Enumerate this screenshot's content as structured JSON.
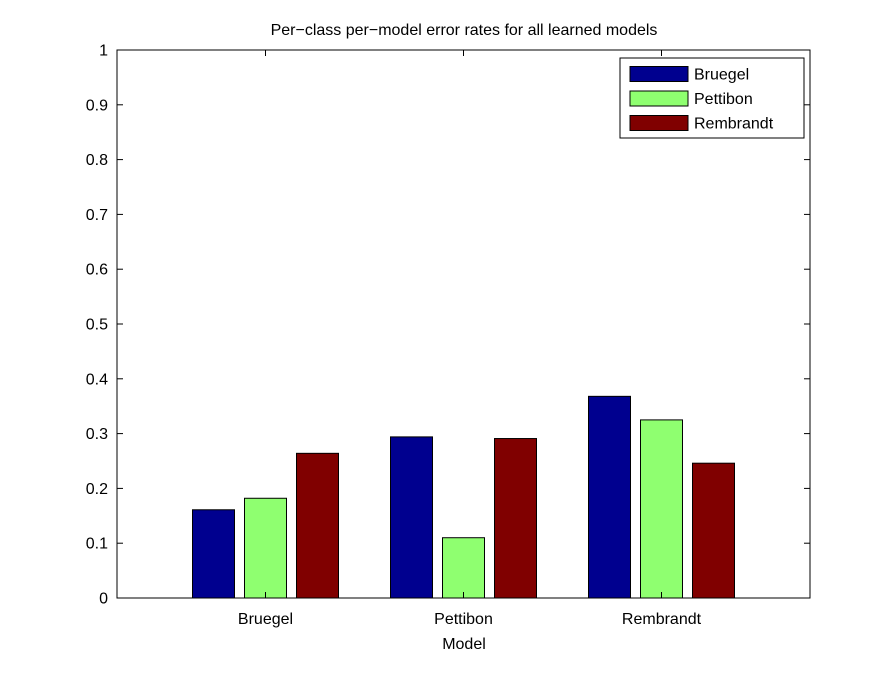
{
  "chart_data": {
    "type": "bar",
    "title": "Per−class per−model error rates for all learned models",
    "xlabel": "Model",
    "ylabel": "",
    "categories": [
      "Bruegel",
      "Pettibon",
      "Rembrandt"
    ],
    "series": [
      {
        "name": "Bruegel",
        "color": "#00008f",
        "values": [
          0.161,
          0.294,
          0.368
        ]
      },
      {
        "name": "Pettibon",
        "color": "#8fff70",
        "values": [
          0.182,
          0.11,
          0.325
        ]
      },
      {
        "name": "Rembrandt",
        "color": "#800000",
        "values": [
          0.264,
          0.291,
          0.246
        ]
      }
    ],
    "ylim": [
      0,
      1
    ],
    "yticks": [
      "0",
      "0.1",
      "0.2",
      "0.3",
      "0.4",
      "0.5",
      "0.6",
      "0.7",
      "0.8",
      "0.9",
      "1"
    ],
    "grid": false,
    "legend_position": "top-right"
  }
}
